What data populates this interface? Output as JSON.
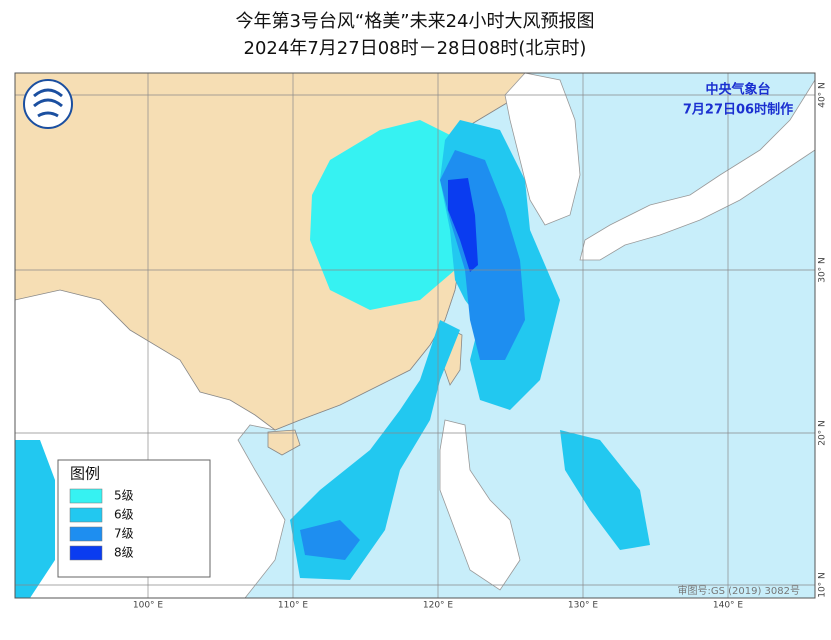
{
  "header": {
    "title": "今年第3号台风“格美”未来24小时大风预报图",
    "subtitle": "2024年7月27日08时－28日08时(北京时)"
  },
  "issuer": {
    "name": "中央气象台",
    "time": "7月27日06时制作"
  },
  "legend": {
    "title": "图例",
    "items": [
      {
        "label": "5级",
        "color": "#36f2f2"
      },
      {
        "label": "6级",
        "color": "#22c8f0"
      },
      {
        "label": "7级",
        "color": "#1e8ef0"
      },
      {
        "label": "8级",
        "color": "#0a3cf0"
      }
    ]
  },
  "axes": {
    "lon_labels": [
      "100° E",
      "110° E",
      "120° E",
      "130° E",
      "140° E"
    ],
    "lat_labels": [
      "40° N",
      "30° N",
      "20° N",
      "10° N"
    ]
  },
  "footer": {
    "approval": "审图号:GS (2019) 3082号"
  }
}
